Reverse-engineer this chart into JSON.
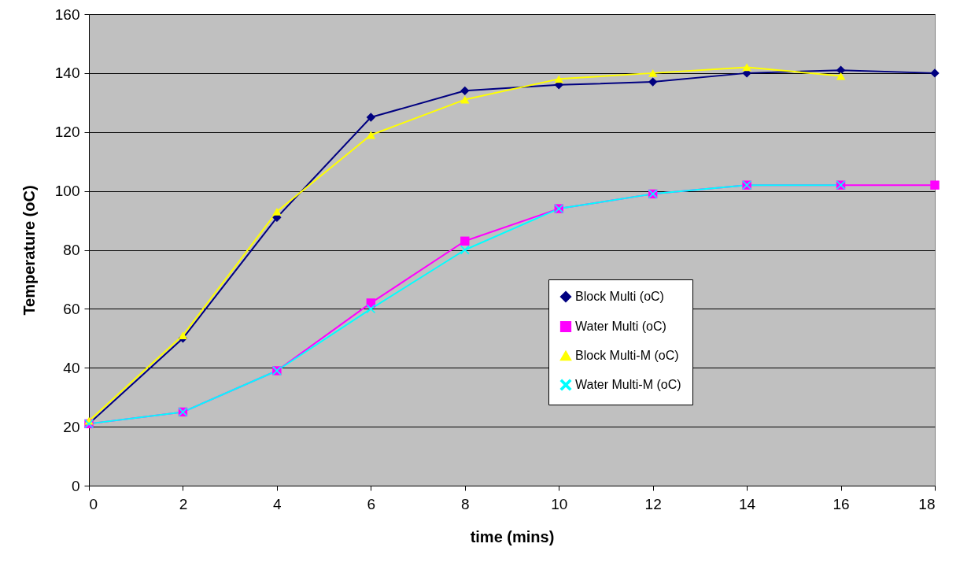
{
  "chart_data": {
    "type": "line",
    "xlabel": "time (mins)",
    "ylabel": "Temperature (oC)",
    "xlim": [
      0,
      18
    ],
    "xticks": [
      0,
      2,
      4,
      6,
      8,
      10,
      12,
      14,
      16,
      18
    ],
    "ylim": [
      0,
      160
    ],
    "yticks": [
      0,
      20,
      40,
      60,
      80,
      100,
      120,
      140,
      160
    ],
    "grid": "y",
    "legend": "right",
    "line_style": "solid",
    "series": [
      {
        "name": "Block Multi (oC)",
        "color": "#000080",
        "marker": "diamond",
        "x": [
          0,
          2,
          4,
          6,
          8,
          10,
          12,
          14,
          16,
          18
        ],
        "values": [
          21,
          50,
          91,
          125,
          134,
          136,
          137,
          140,
          141,
          140
        ]
      },
      {
        "name": "Water Multi (oC)",
        "color": "#ff00ff",
        "marker": "square",
        "x": [
          0,
          2,
          4,
          6,
          8,
          10,
          12,
          14,
          16,
          18
        ],
        "values": [
          21,
          25,
          39,
          62,
          83,
          94,
          99,
          102,
          102,
          102
        ]
      },
      {
        "name": "Block Multi-M (oC)",
        "color": "#ffff00",
        "marker": "triangle",
        "x": [
          0,
          2,
          4,
          6,
          8,
          10,
          12,
          14,
          16
        ],
        "values": [
          22,
          51,
          93,
          119,
          131,
          138,
          140,
          142,
          139
        ]
      },
      {
        "name": "Water Multi-M (oC)",
        "color": "#00ffff",
        "marker": "cross",
        "x": [
          0,
          2,
          4,
          6,
          8,
          10,
          12,
          14,
          16
        ],
        "values": [
          21,
          25,
          39,
          60,
          80,
          94,
          99,
          102,
          102
        ]
      }
    ]
  }
}
